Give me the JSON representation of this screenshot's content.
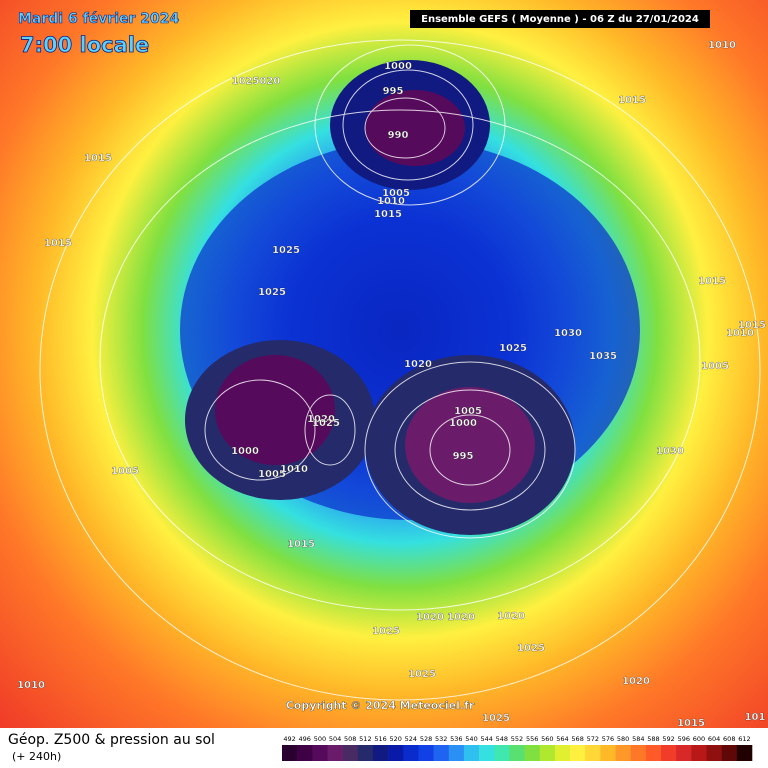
{
  "header": {
    "date": "Mardi 6 février 2024",
    "time": "7:00 locale",
    "run": "Ensemble GEFS  ( Moyenne )  -  06 Z du 27/01/2024"
  },
  "isobar_labels": [
    "1000",
    "995",
    "990",
    "1005",
    "1010",
    "1015",
    "1025",
    "1025",
    "1020",
    "1025",
    "1030",
    "1035",
    "1005",
    "1000",
    "995",
    "1020",
    "1025",
    "1000",
    "1005",
    "1010",
    "1015",
    "1005",
    "1015",
    "1015",
    "1025020",
    "1010",
    "1015",
    "1015",
    "1010",
    "1015",
    "1005",
    "1030",
    "1020",
    "1020",
    "1020",
    "1025",
    "1025",
    "1025",
    "1020",
    "1010",
    "1025",
    "1015",
    "101"
  ],
  "copyright": "Copyright © 2024 Meteociel.fr",
  "footer": {
    "title": "Géop. Z500 & pression au sol",
    "lead": "(+ 240h)"
  },
  "colorbar": {
    "labels": [
      492,
      496,
      500,
      504,
      508,
      512,
      516,
      520,
      524,
      528,
      532,
      536,
      540,
      544,
      548,
      552,
      556,
      560,
      564,
      568,
      572,
      576,
      580,
      584,
      588,
      592,
      596,
      600,
      604,
      608,
      612
    ],
    "colors": [
      "#2a0030",
      "#3f0045",
      "#560a5c",
      "#6a1c6a",
      "#4a2a62",
      "#252a6a",
      "#101a80",
      "#0a1aa8",
      "#0a2ccc",
      "#1040e6",
      "#1e64f0",
      "#2a90f4",
      "#30c0f0",
      "#34e0e0",
      "#40e8b0",
      "#58e070",
      "#80e040",
      "#b0e830",
      "#e0f030",
      "#fff040",
      "#ffd838",
      "#ffb828",
      "#ff9828",
      "#ff7828",
      "#ff5a28",
      "#f03c28",
      "#d82828",
      "#b81818",
      "#901010",
      "#600808",
      "#200000"
    ]
  }
}
